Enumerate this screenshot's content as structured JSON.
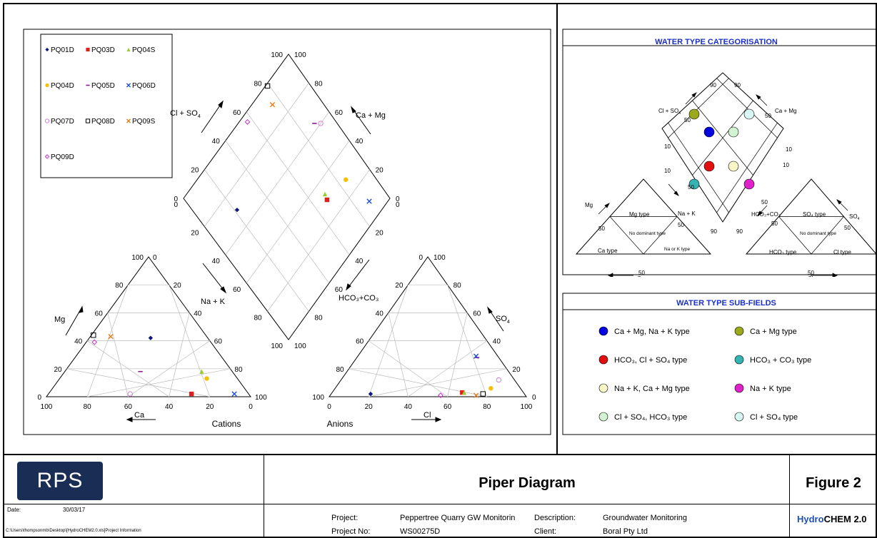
{
  "chart_data": {
    "type": "scatter",
    "subtype": "piper",
    "labels": {
      "cations": "Cations",
      "anions": "Anions",
      "mg": "Mg",
      "ca": "Ca",
      "na_k": "Na + K",
      "cl": "Cl",
      "so4": "SO",
      "hco3_co3": "HCO₃+CO₃",
      "cl_so4": "Cl + SO",
      "ca_mg": "Ca + Mg"
    },
    "ticks": [
      "0",
      "20",
      "40",
      "60",
      "80",
      "100"
    ],
    "series": [
      {
        "name": "PQ01D",
        "marker": "diamond",
        "color": "#0a1a7a",
        "ca": 28,
        "mg": 42,
        "cl": 20,
        "so4": 2
      },
      {
        "name": "PQ03D",
        "marker": "square",
        "color": "#e0201a",
        "ca": 28,
        "mg": 2,
        "cl": 66,
        "so4": 3
      },
      {
        "name": "PQ04S",
        "marker": "triangle",
        "color": "#9acd32",
        "ca": 15,
        "mg": 18,
        "cl": 67,
        "so4": 3
      },
      {
        "name": "PQ04D",
        "marker": "circle",
        "color": "#f5c000",
        "ca": 15,
        "mg": 13,
        "cl": 79,
        "so4": 6
      },
      {
        "name": "PQ05D",
        "marker": "dash",
        "color": "#8b1a8b",
        "ca": 45,
        "mg": 18,
        "cl": 61,
        "so4": 28
      },
      {
        "name": "PQ06D",
        "marker": "x",
        "color": "#2050d0",
        "ca": 7,
        "mg": 2,
        "cl": 60,
        "so4": 29
      },
      {
        "name": "PQ07D",
        "marker": "circle-open",
        "color": "#d47fd4",
        "ca": 58,
        "mg": 2,
        "cl": 80,
        "so4": 12
      },
      {
        "name": "PQ08D",
        "marker": "square-open",
        "color": "#000000",
        "ca": 55,
        "mg": 44,
        "cl": 77,
        "so4": 2
      },
      {
        "name": "PQ09S",
        "marker": "x",
        "color": "#e67e22",
        "ca": 47,
        "mg": 43,
        "cl": 74,
        "so4": 1
      },
      {
        "name": "PQ09D",
        "marker": "diamond-open",
        "color": "#cc33cc",
        "ca": 57,
        "mg": 39,
        "cl": 56,
        "so4": 1
      }
    ]
  },
  "categorisation": {
    "title": "WATER TYPE CATEGORISATION",
    "mg": "Mg",
    "na_k": "Na + K",
    "ca": "Ca",
    "cl": "Cl",
    "so4": "SO",
    "cl_so4": "Cl + SO",
    "ca_mg": "Ca + Mg",
    "hco3_co3": "HCO₃+CO₃",
    "mg_type": "Mg type",
    "ca_type": "Ca type",
    "na_k_type": "Na or K type",
    "no_dominant": "No dominant type",
    "so4_type": "SO₄ type",
    "hco3_type": "HCO₃ type",
    "cl_type": "Cl type",
    "n50": "50",
    "n90": "90",
    "n10": "10"
  },
  "subfields": {
    "title": "WATER TYPE SUB-FIELDS",
    "items": [
      {
        "label": "Ca + Mg, Na + K type",
        "color": "#0000e0"
      },
      {
        "label": "Ca + Mg type",
        "color": "#9aaa1a"
      },
      {
        "label": "HCO₃, Cl + SO₄ type",
        "color": "#e01010"
      },
      {
        "label": "HCO₃ + CO₃ type",
        "color": "#36b3b3"
      },
      {
        "label": "Na + K, Ca + Mg type",
        "color": "#f8f5c6"
      },
      {
        "label": "Na + K type",
        "color": "#e020c8"
      },
      {
        "label": "Cl + SO₄, HCO₃ type",
        "color": "#d2f2d2"
      },
      {
        "label": "Cl + SO₄ type",
        "color": "#d8f7f4"
      }
    ]
  },
  "footer": {
    "logo": "RPS",
    "title": "Piper Diagram",
    "figure": "Figure 2",
    "date_label": "Date:",
    "date_value": "30/03/17",
    "path": "C:\\Users\\thompsonmb\\Desktop\\[HydroCHEM2.0.xls]Project Information",
    "project_label": "Project:",
    "project_value": "Peppertree Quarry GW Monitorin",
    "project_no_label": "Project No:",
    "project_no_value": "WS00275D",
    "description_label": "Description:",
    "description_value": "Groundwater Monitoring",
    "client_label": "Client:",
    "client_value": "Boral Pty Ltd",
    "brand_a": "Hydro",
    "brand_b": "CHEM 2.0"
  }
}
